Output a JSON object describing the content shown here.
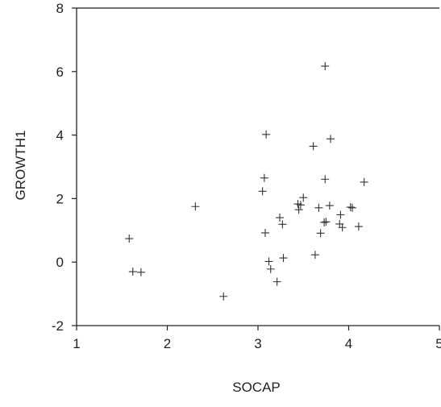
{
  "chart_data": {
    "type": "scatter",
    "title": "",
    "xlabel": "SOCAP",
    "ylabel": "GROWTH1",
    "xlim": [
      1,
      5
    ],
    "ylim": [
      -2,
      8
    ],
    "xticks": [
      "1",
      "2",
      "3",
      "4",
      "5"
    ],
    "yticks": [
      "-2",
      "0",
      "2",
      "4",
      "6",
      "8"
    ],
    "grid": false,
    "marker": "+",
    "points": [
      {
        "x": 1.58,
        "y": 0.74
      },
      {
        "x": 1.62,
        "y": -0.3
      },
      {
        "x": 1.71,
        "y": -0.32
      },
      {
        "x": 2.31,
        "y": 1.75
      },
      {
        "x": 2.62,
        "y": -1.08
      },
      {
        "x": 3.05,
        "y": 2.23
      },
      {
        "x": 3.07,
        "y": 2.65
      },
      {
        "x": 3.08,
        "y": 0.92
      },
      {
        "x": 3.09,
        "y": 4.02
      },
      {
        "x": 3.12,
        "y": 0.02
      },
      {
        "x": 3.14,
        "y": -0.22
      },
      {
        "x": 3.21,
        "y": -0.62
      },
      {
        "x": 3.24,
        "y": 1.4
      },
      {
        "x": 3.27,
        "y": 1.19
      },
      {
        "x": 3.28,
        "y": 0.13
      },
      {
        "x": 3.44,
        "y": 1.83
      },
      {
        "x": 3.45,
        "y": 1.65
      },
      {
        "x": 3.47,
        "y": 1.8
      },
      {
        "x": 3.5,
        "y": 2.03
      },
      {
        "x": 3.61,
        "y": 3.65
      },
      {
        "x": 3.63,
        "y": 0.23
      },
      {
        "x": 3.67,
        "y": 1.71
      },
      {
        "x": 3.69,
        "y": 0.91
      },
      {
        "x": 3.73,
        "y": 1.25
      },
      {
        "x": 3.74,
        "y": 2.61
      },
      {
        "x": 3.74,
        "y": 6.17
      },
      {
        "x": 3.75,
        "y": 1.27
      },
      {
        "x": 3.79,
        "y": 1.78
      },
      {
        "x": 3.8,
        "y": 3.88
      },
      {
        "x": 3.9,
        "y": 1.2
      },
      {
        "x": 3.91,
        "y": 1.49
      },
      {
        "x": 3.93,
        "y": 1.09
      },
      {
        "x": 4.02,
        "y": 1.73
      },
      {
        "x": 4.04,
        "y": 1.71
      },
      {
        "x": 4.11,
        "y": 1.12
      },
      {
        "x": 4.17,
        "y": 2.52
      }
    ]
  }
}
